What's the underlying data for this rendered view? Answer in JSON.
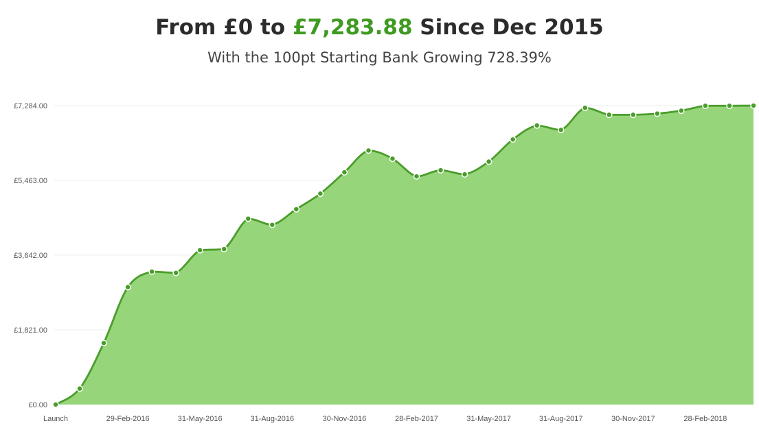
{
  "header": {
    "title_prefix": "From £0 to ",
    "title_amount": "£7,283.88",
    "title_suffix": " Since Dec 2015",
    "subtitle": "With the 100pt Starting Bank Growing 728.39%"
  },
  "colors": {
    "line": "#4a9d2a",
    "fill": "#97d57b",
    "amount": "#3f9a22",
    "grid": "#ececec"
  },
  "chart_data": {
    "type": "area",
    "ylim": [
      0,
      7284
    ],
    "y_ticks": [
      0,
      1821,
      3642,
      5463,
      7284
    ],
    "y_tick_labels": [
      "£0.00",
      "£1,821.00",
      "£3,642.00",
      "£5,463.00",
      "£7,284.00"
    ],
    "x_tick_labels": [
      {
        "index": 0,
        "label": "Launch"
      },
      {
        "index": 3,
        "label": "29-Feb-2016"
      },
      {
        "index": 6,
        "label": "31-May-2016"
      },
      {
        "index": 9,
        "label": "31-Aug-2016"
      },
      {
        "index": 12,
        "label": "30-Nov-2016"
      },
      {
        "index": 15,
        "label": "28-Feb-2017"
      },
      {
        "index": 18,
        "label": "31-May-2017"
      },
      {
        "index": 21,
        "label": "31-Aug-2017"
      },
      {
        "index": 24,
        "label": "30-Nov-2017"
      },
      {
        "index": 27,
        "label": "28-Feb-2018"
      }
    ],
    "values": [
      0,
      390,
      1500,
      2860,
      3240,
      3210,
      3760,
      3790,
      4530,
      4380,
      4760,
      5140,
      5660,
      6190,
      5990,
      5560,
      5710,
      5610,
      5920,
      6460,
      6800,
      6690,
      7230,
      7060,
      7060,
      7090,
      7160,
      7280,
      7280,
      7284
    ],
    "grid": true,
    "legend": "none"
  }
}
